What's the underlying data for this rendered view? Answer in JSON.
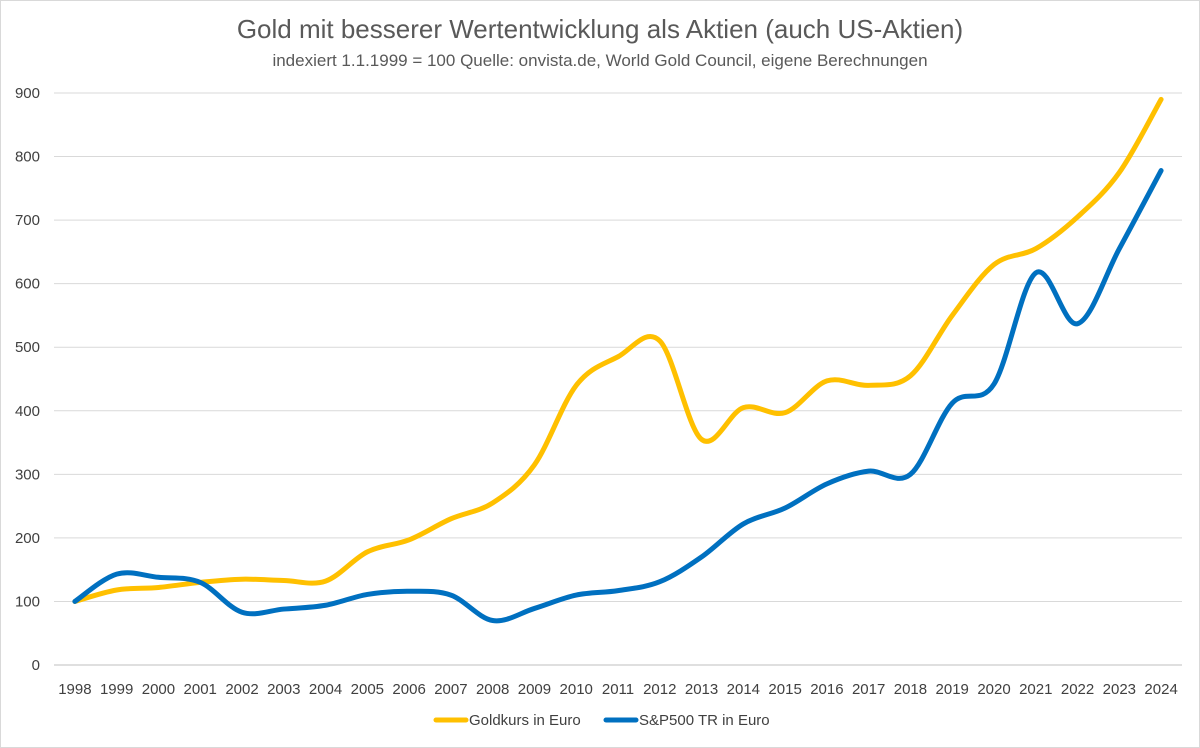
{
  "chart_data": {
    "type": "line",
    "title": "Gold mit besserer Wertentwicklung als Aktien (auch US-Aktien)",
    "subtitle": "indexiert 1.1.1999 = 100 Quelle: onvista.de, World Gold Council, eigene Berechnungen",
    "xlabel": "",
    "ylabel": "",
    "ylim": [
      0,
      900
    ],
    "y_ticks": [
      0,
      100,
      200,
      300,
      400,
      500,
      600,
      700,
      800,
      900
    ],
    "grid": true,
    "legend_position": "bottom",
    "categories": [
      "1998",
      "1999",
      "2000",
      "2001",
      "2002",
      "2003",
      "2004",
      "2005",
      "2006",
      "2007",
      "2008",
      "2009",
      "2010",
      "2011",
      "2012",
      "2013",
      "2014",
      "2015",
      "2016",
      "2017",
      "2018",
      "2019",
      "2020",
      "2021",
      "2022",
      "2023",
      "2024"
    ],
    "series": [
      {
        "name": "Goldkurs in Euro",
        "color": "#FFC000",
        "values": [
          100,
          118,
          122,
          130,
          135,
          133,
          132,
          178,
          197,
          230,
          255,
          315,
          440,
          485,
          510,
          355,
          405,
          397,
          447,
          440,
          455,
          550,
          630,
          655,
          705,
          775,
          890
        ]
      },
      {
        "name": "S&P500 TR in Euro",
        "color": "#0070C0",
        "values": [
          100,
          143,
          138,
          130,
          83,
          88,
          94,
          111,
          116,
          110,
          70,
          89,
          110,
          117,
          131,
          170,
          222,
          247,
          285,
          305,
          300,
          412,
          442,
          617,
          537,
          655,
          778
        ]
      }
    ]
  }
}
